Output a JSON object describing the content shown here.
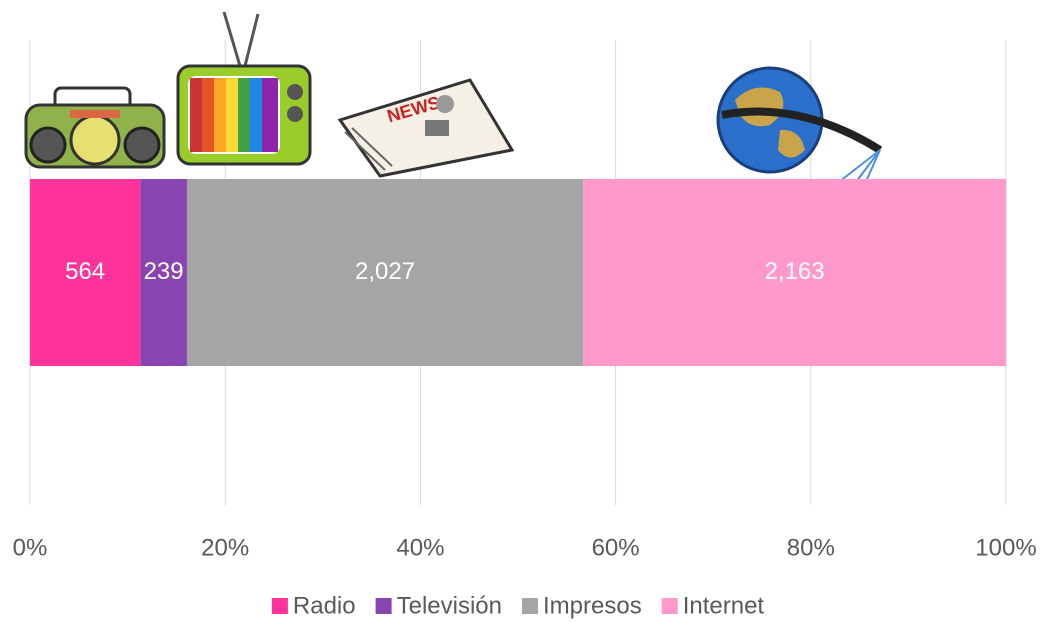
{
  "chart_data": {
    "type": "bar",
    "orientation": "horizontal",
    "stacked": "percent",
    "series": [
      {
        "name": "Radio",
        "color": "#ff3399",
        "values": [
          564
        ],
        "value_labels": [
          "564"
        ]
      },
      {
        "name": "Televisión",
        "color": "#8a44b0",
        "values": [
          239
        ],
        "value_labels": [
          "239"
        ]
      },
      {
        "name": "Impresos",
        "color": "#a5a5a5",
        "values": [
          2027
        ],
        "value_labels": [
          "2,027"
        ]
      },
      {
        "name": "Internet",
        "color": "#ff99cc",
        "values": [
          2163
        ],
        "value_labels": [
          "2,163"
        ]
      }
    ],
    "xlim": [
      0,
      100
    ],
    "xticks": [
      {
        "value": 0,
        "label": "0%"
      },
      {
        "value": 20,
        "label": "20%"
      },
      {
        "value": 40,
        "label": "40%"
      },
      {
        "value": 60,
        "label": "60%"
      },
      {
        "value": 80,
        "label": "80%"
      },
      {
        "value": 100,
        "label": "100%"
      }
    ],
    "grid": true,
    "legend": "bottom"
  }
}
